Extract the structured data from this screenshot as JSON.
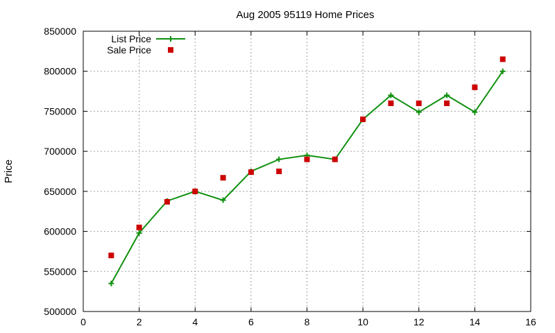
{
  "chart_data": {
    "type": "line",
    "title": "Aug 2005 95119 Home Prices",
    "xlabel": "",
    "ylabel": "Price",
    "xlim": [
      0,
      16
    ],
    "ylim": [
      500000,
      850000
    ],
    "x_ticks": [
      0,
      2,
      4,
      6,
      8,
      10,
      12,
      14,
      16
    ],
    "y_ticks": [
      500000,
      550000,
      600000,
      650000,
      700000,
      750000,
      800000,
      850000
    ],
    "x_tick_labels": [
      "0",
      "2",
      "4",
      "6",
      "8",
      "10",
      "12",
      "14",
      "16"
    ],
    "y_tick_labels": [
      "500000",
      "550000",
      "600000",
      "650000",
      "700000",
      "750000",
      "800000",
      "850000"
    ],
    "grid": true,
    "legend_position": "top-left",
    "series": [
      {
        "name": "List Price",
        "style": "line-with-plus-markers",
        "color": "#109010",
        "x": [
          1,
          2,
          3,
          4,
          5,
          6,
          7,
          8,
          9,
          10,
          11,
          12,
          13,
          14,
          15
        ],
        "y": [
          535000,
          598000,
          638000,
          650000,
          639000,
          675000,
          690000,
          695000,
          690000,
          740000,
          770000,
          749000,
          770000,
          749000,
          800000
        ]
      },
      {
        "name": "Sale Price",
        "style": "square-markers",
        "color": "#cc0000",
        "x": [
          1,
          2,
          3,
          4,
          5,
          6,
          7,
          8,
          9,
          10,
          11,
          12,
          13,
          14,
          15
        ],
        "y": [
          570000,
          605000,
          637000,
          650000,
          667000,
          674000,
          675000,
          690000,
          690000,
          740000,
          760000,
          760000,
          760000,
          780000,
          815000
        ]
      }
    ]
  }
}
